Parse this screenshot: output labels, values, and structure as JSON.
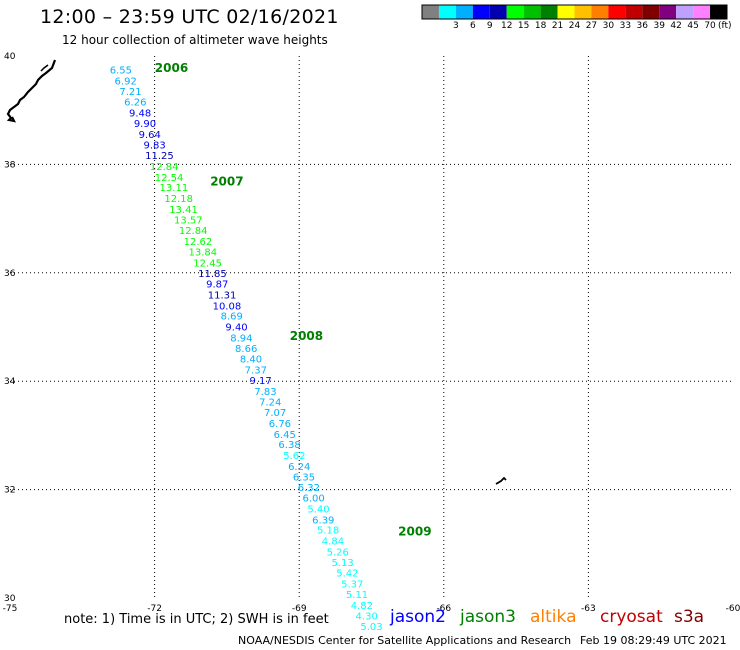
{
  "header": {
    "title": "12:00 – 23:59 UTC 02/16/2021",
    "subtitle": "12 hour collection of altimeter wave heights"
  },
  "legend": {
    "colors": [
      "#808080",
      "#00ffff",
      "#00b0ff",
      "#0000ff",
      "#0000b0",
      "#00ff00",
      "#00c000",
      "#008000",
      "#ffff00",
      "#ffc000",
      "#ff8000",
      "#ff0000",
      "#c00000",
      "#800000",
      "#800080",
      "#c0a0ff",
      "#ff80ff",
      "#000000"
    ],
    "labels": [
      "3",
      "6",
      "9",
      "12",
      "15",
      "18",
      "21",
      "24",
      "27",
      "30",
      "33",
      "36",
      "39",
      "42",
      "45",
      "70"
    ],
    "unit": "(ft)"
  },
  "chart_data": {
    "type": "scatter",
    "title": "12 hour collection of altimeter wave heights",
    "x_range": [
      -75,
      -60
    ],
    "y_range": [
      30,
      40
    ],
    "x_ticks": [
      "-75",
      "-72",
      "-69",
      "-66",
      "-63",
      "-60"
    ],
    "y_ticks": [
      "30",
      "32",
      "34",
      "36",
      "38",
      "40"
    ],
    "grid": true,
    "series": [
      {
        "name": "jason2",
        "points": [
          {
            "x": -72.7,
            "y": 39.75,
            "label": "6.55",
            "color": "#00b0ff"
          },
          {
            "x": -72.6,
            "y": 39.55,
            "label": "6.92",
            "color": "#00b0ff"
          },
          {
            "x": -72.5,
            "y": 39.35,
            "label": "7.21",
            "color": "#00b0ff"
          },
          {
            "x": -72.4,
            "y": 39.16,
            "label": "6.26",
            "color": "#00b0ff"
          },
          {
            "x": -72.3,
            "y": 38.96,
            "label": "9.48",
            "color": "#0000ff"
          },
          {
            "x": -72.2,
            "y": 38.76,
            "label": "9.90",
            "color": "#0000ff"
          },
          {
            "x": -72.1,
            "y": 38.56,
            "label": "9.64",
            "color": "#0000ff"
          },
          {
            "x": -72.0,
            "y": 38.37,
            "label": "9.83",
            "color": "#0000ff"
          },
          {
            "x": -71.9,
            "y": 38.17,
            "label": "11.25",
            "color": "#0000b0"
          },
          {
            "x": -71.8,
            "y": 37.97,
            "label": "12.84",
            "color": "#00ff00"
          },
          {
            "x": -71.7,
            "y": 37.77,
            "label": "12.54",
            "color": "#00ff00"
          },
          {
            "x": -71.6,
            "y": 37.58,
            "label": "13.11",
            "color": "#00ff00"
          },
          {
            "x": -71.5,
            "y": 37.38,
            "label": "12.18",
            "color": "#00ff00"
          },
          {
            "x": -71.4,
            "y": 37.18,
            "label": "13.41",
            "color": "#00ff00"
          },
          {
            "x": -71.3,
            "y": 36.98,
            "label": "13.57",
            "color": "#00ff00"
          },
          {
            "x": -71.2,
            "y": 36.79,
            "label": "12.84",
            "color": "#00ff00"
          },
          {
            "x": -71.1,
            "y": 36.59,
            "label": "12.62",
            "color": "#00ff00"
          },
          {
            "x": -71.0,
            "y": 36.39,
            "label": "13.84",
            "color": "#00ff00"
          },
          {
            "x": -70.9,
            "y": 36.19,
            "label": "12.45",
            "color": "#00ff00"
          },
          {
            "x": -70.8,
            "y": 36.0,
            "label": "11.85",
            "color": "#0000b0"
          },
          {
            "x": -70.7,
            "y": 35.8,
            "label": "9.87",
            "color": "#0000ff"
          },
          {
            "x": -70.6,
            "y": 35.6,
            "label": "11.31",
            "color": "#0000b0"
          },
          {
            "x": -70.5,
            "y": 35.4,
            "label": "10.08",
            "color": "#0000ff"
          },
          {
            "x": -70.4,
            "y": 35.21,
            "label": "8.69",
            "color": "#00b0ff"
          },
          {
            "x": -70.3,
            "y": 35.01,
            "label": "9.40",
            "color": "#0000ff"
          },
          {
            "x": -70.2,
            "y": 34.81,
            "label": "8.94",
            "color": "#00b0ff"
          },
          {
            "x": -70.1,
            "y": 34.61,
            "label": "8.66",
            "color": "#00b0ff"
          },
          {
            "x": -70.0,
            "y": 34.42,
            "label": "8.40",
            "color": "#00b0ff"
          },
          {
            "x": -69.9,
            "y": 34.22,
            "label": "7.37",
            "color": "#00b0ff"
          },
          {
            "x": -69.8,
            "y": 34.02,
            "label": "9.17",
            "color": "#0000ff"
          },
          {
            "x": -69.7,
            "y": 33.82,
            "label": "7.83",
            "color": "#00b0ff"
          },
          {
            "x": -69.6,
            "y": 33.63,
            "label": "7.24",
            "color": "#00b0ff"
          },
          {
            "x": -69.5,
            "y": 33.43,
            "label": "7.07",
            "color": "#00b0ff"
          },
          {
            "x": -69.4,
            "y": 33.23,
            "label": "6.76",
            "color": "#00b0ff"
          },
          {
            "x": -69.3,
            "y": 33.03,
            "label": "6.45",
            "color": "#00b0ff"
          },
          {
            "x": -69.2,
            "y": 32.84,
            "label": "6.38",
            "color": "#00b0ff"
          },
          {
            "x": -69.1,
            "y": 32.64,
            "label": "5.62",
            "color": "#00ffff"
          },
          {
            "x": -69.0,
            "y": 32.44,
            "label": "6.24",
            "color": "#00b0ff"
          },
          {
            "x": -68.9,
            "y": 32.24,
            "label": "6.35",
            "color": "#00b0ff"
          },
          {
            "x": -68.8,
            "y": 32.05,
            "label": "6.32",
            "color": "#00b0ff"
          },
          {
            "x": -68.7,
            "y": 31.85,
            "label": "6.00",
            "color": "#00b0ff"
          },
          {
            "x": -68.6,
            "y": 31.65,
            "label": "5.40",
            "color": "#00ffff"
          },
          {
            "x": -68.5,
            "y": 31.45,
            "label": "6.39",
            "color": "#00b0ff"
          },
          {
            "x": -68.4,
            "y": 31.26,
            "label": "5.18",
            "color": "#00ffff"
          },
          {
            "x": -68.3,
            "y": 31.06,
            "label": "4.84",
            "color": "#00ffff"
          },
          {
            "x": -68.2,
            "y": 30.86,
            "label": "5.26",
            "color": "#00ffff"
          },
          {
            "x": -68.1,
            "y": 30.66,
            "label": "5.13",
            "color": "#00ffff"
          },
          {
            "x": -68.0,
            "y": 30.47,
            "label": "5.42",
            "color": "#00ffff"
          },
          {
            "x": -67.9,
            "y": 30.27,
            "label": "5.37",
            "color": "#00ffff"
          },
          {
            "x": -67.8,
            "y": 30.07,
            "label": "5.11",
            "color": "#00ffff"
          },
          {
            "x": -67.7,
            "y": 29.87,
            "label": "4.82",
            "color": "#00ffff"
          },
          {
            "x": -67.6,
            "y": 29.68,
            "label": "4.30",
            "color": "#00ffff"
          },
          {
            "x": -67.5,
            "y": 29.48,
            "label": "5.03",
            "color": "#00ffff"
          }
        ]
      }
    ],
    "time_labels": [
      {
        "text": "2006",
        "x": -71.65,
        "y": 39.8
      },
      {
        "text": "2007",
        "x": -70.5,
        "y": 37.7
      },
      {
        "text": "2008",
        "x": -68.85,
        "y": 34.85
      },
      {
        "text": "2009",
        "x": -66.6,
        "y": 31.25
      }
    ],
    "label_color": "#008000"
  },
  "footer": {
    "note": "note:  1) Time is in UTC;  2) SWH is in feet",
    "satellites": [
      {
        "name": "jason2",
        "color": "#0000ff"
      },
      {
        "name": "jason3",
        "color": "#008000"
      },
      {
        "name": "altika",
        "color": "#ff8000"
      },
      {
        "name": "cryosat",
        "color": "#c00000"
      },
      {
        "name": "s3a",
        "color": "#800000"
      }
    ],
    "credit": "NOAA/NESDIS Center for Satellite Applications and Research",
    "timestamp": "Feb 19 08:29:49 UTC 2021"
  }
}
